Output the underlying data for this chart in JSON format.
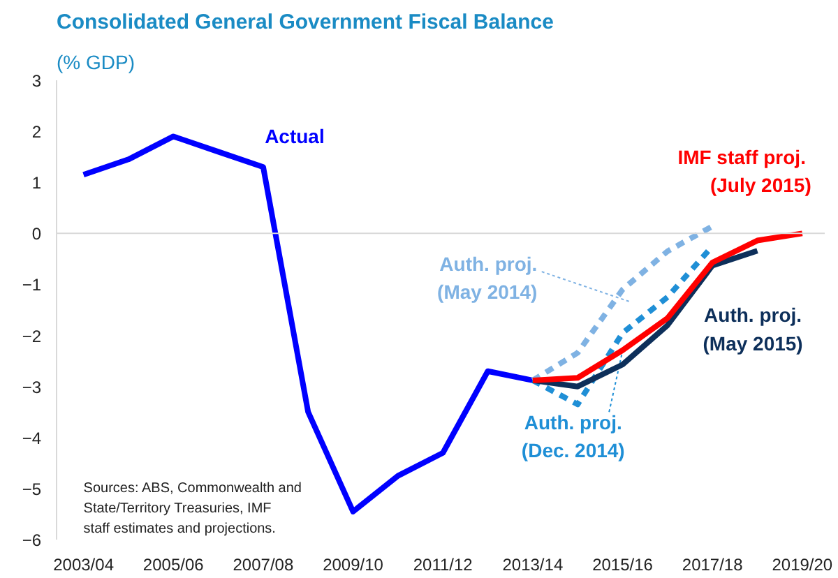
{
  "chart_data": {
    "type": "line",
    "title": "Consolidated General Government Fiscal Balance",
    "subtitle": "(% GDP)",
    "categories": [
      "2003/04",
      null,
      "2005/06",
      null,
      "2007/08",
      null,
      "2009/10",
      null,
      "2011/12",
      null,
      "2013/14",
      null,
      "2015/16",
      null,
      "2017/18",
      null,
      "2019/20"
    ],
    "series": [
      {
        "name": "Actual",
        "color": "#0000ff",
        "values": [
          1.15,
          1.45,
          1.9,
          1.6,
          1.3,
          -3.5,
          -5.45,
          -4.75,
          -4.3,
          -2.7,
          -2.88,
          null,
          null,
          null,
          null,
          null,
          null
        ]
      },
      {
        "name": "Auth. proj. (May 2014)",
        "color": "#7fb2e3",
        "line_style": "dashed",
        "values": [
          null,
          null,
          null,
          null,
          null,
          null,
          null,
          null,
          null,
          null,
          -2.88,
          -2.34,
          -1.1,
          -0.35,
          0.14,
          null,
          null
        ]
      },
      {
        "name": "Auth. proj. (Dec. 2014)",
        "color": "#1f8fd6",
        "line_style": "dashed",
        "values": [
          null,
          null,
          null,
          null,
          null,
          null,
          null,
          null,
          null,
          null,
          -2.88,
          -3.35,
          -1.95,
          -1.25,
          -0.25,
          null,
          null
        ]
      },
      {
        "name": "Auth. proj. (May 2015)",
        "color": "#0d2f5a",
        "values": [
          null,
          null,
          null,
          null,
          null,
          null,
          null,
          null,
          null,
          null,
          -2.88,
          -3.0,
          -2.57,
          -1.8,
          -0.63,
          -0.34,
          null
        ]
      },
      {
        "name": "IMF  staff proj. (July 2015)",
        "color": "#ff0000",
        "values": [
          null,
          null,
          null,
          null,
          null,
          null,
          null,
          null,
          null,
          null,
          -2.88,
          -2.83,
          -2.29,
          -1.66,
          -0.57,
          -0.14,
          0.0
        ]
      }
    ],
    "ylim": [
      -6,
      3
    ],
    "yticks": [
      -6,
      -5,
      -4,
      -3,
      -2,
      -1,
      0,
      1,
      2,
      3
    ],
    "grid": false,
    "ref_lines": [
      {
        "axis": "y",
        "value": 0,
        "color": "#d9d9d9"
      }
    ],
    "annotations": [
      "Sources: ABS, Commonwealth and State/Territory Treasuries, IMF staff estimates and projections."
    ]
  }
}
